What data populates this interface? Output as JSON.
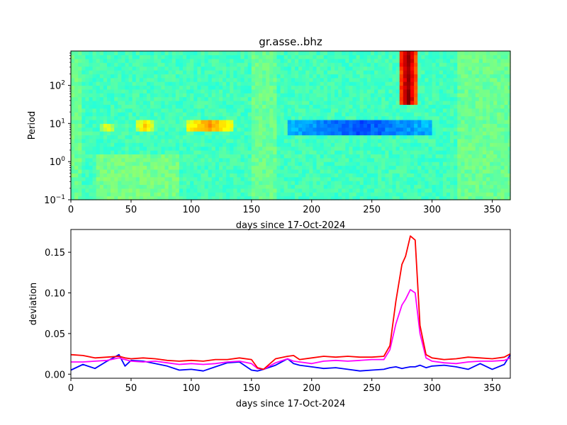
{
  "colors": {
    "series_low": "#0000ff",
    "series_mid": "#ff00ff",
    "series_high": "#ff0000"
  },
  "chart_data": [
    {
      "type": "heatmap",
      "title": "gr.asse..bhz",
      "xlabel": "days since 17-Oct-2024",
      "ylabel": "Period",
      "xlim": [
        0,
        365
      ],
      "ylim_log10": [
        -1,
        2.9
      ],
      "x_ticks": [
        0,
        50,
        100,
        150,
        200,
        250,
        300,
        350
      ],
      "y_ticks": [
        {
          "exp": -1,
          "base": "10",
          "sup": "−1"
        },
        {
          "exp": 0,
          "base": "10",
          "sup": "0"
        },
        {
          "exp": 1,
          "base": "10",
          "sup": "1"
        },
        {
          "exp": 2,
          "base": "10",
          "sup": "2"
        }
      ],
      "colormap": "jet",
      "features": [
        {
          "desc": "strong burst",
          "x_range": [
            272,
            288
          ],
          "period_range": [
            30,
            800
          ],
          "level": 1.0
        },
        {
          "desc": "elevated band",
          "x_range": [
            96,
            135
          ],
          "period_range": [
            7,
            14
          ],
          "level": 0.72
        },
        {
          "desc": "elevated band",
          "x_range": [
            55,
            68
          ],
          "period_range": [
            7,
            14
          ],
          "level": 0.66
        },
        {
          "desc": "elevated band",
          "x_range": [
            25,
            35
          ],
          "period_range": [
            6,
            10
          ],
          "level": 0.6
        },
        {
          "desc": "depressed band",
          "x_range": [
            180,
            300
          ],
          "period_range": [
            5,
            12
          ],
          "level": 0.2
        }
      ]
    },
    {
      "type": "line",
      "title": "",
      "xlabel": "days since 17-Oct-2024",
      "ylabel": "deviation",
      "xlim": [
        0,
        365
      ],
      "ylim": [
        -0.005,
        0.178
      ],
      "x_ticks": [
        0,
        50,
        100,
        150,
        200,
        250,
        300,
        350
      ],
      "y_ticks": [
        {
          "value": 0.0,
          "label": "0.00"
        },
        {
          "value": 0.05,
          "label": "0.05"
        },
        {
          "value": 0.1,
          "label": "0.10"
        },
        {
          "value": 0.15,
          "label": "0.15"
        }
      ],
      "x": [
        0,
        10,
        20,
        30,
        40,
        45,
        50,
        60,
        70,
        80,
        90,
        100,
        110,
        120,
        130,
        140,
        150,
        155,
        160,
        170,
        180,
        185,
        190,
        200,
        210,
        220,
        230,
        240,
        250,
        260,
        265,
        270,
        275,
        278,
        282,
        286,
        290,
        295,
        300,
        310,
        320,
        330,
        340,
        350,
        360,
        365
      ],
      "series": [
        {
          "name": "blue",
          "color": "#0000ff",
          "values": [
            0.005,
            0.012,
            0.007,
            0.016,
            0.024,
            0.01,
            0.017,
            0.016,
            0.013,
            0.01,
            0.005,
            0.006,
            0.004,
            0.009,
            0.014,
            0.015,
            0.005,
            0.004,
            0.006,
            0.011,
            0.019,
            0.013,
            0.011,
            0.009,
            0.007,
            0.008,
            0.006,
            0.004,
            0.005,
            0.006,
            0.008,
            0.009,
            0.007,
            0.008,
            0.009,
            0.009,
            0.011,
            0.008,
            0.01,
            0.011,
            0.009,
            0.006,
            0.013,
            0.006,
            0.012,
            0.024
          ]
        },
        {
          "name": "magenta",
          "color": "#ff00ff",
          "values": [
            0.015,
            0.015,
            0.016,
            0.017,
            0.02,
            0.018,
            0.016,
            0.015,
            0.016,
            0.014,
            0.012,
            0.013,
            0.012,
            0.013,
            0.015,
            0.016,
            0.013,
            0.007,
            0.006,
            0.014,
            0.019,
            0.016,
            0.015,
            0.013,
            0.016,
            0.017,
            0.016,
            0.017,
            0.018,
            0.018,
            0.03,
            0.062,
            0.085,
            0.092,
            0.104,
            0.1,
            0.05,
            0.02,
            0.016,
            0.014,
            0.013,
            0.015,
            0.016,
            0.016,
            0.017,
            0.02
          ]
        },
        {
          "name": "red",
          "color": "#ff0000",
          "values": [
            0.024,
            0.023,
            0.02,
            0.021,
            0.022,
            0.02,
            0.019,
            0.02,
            0.019,
            0.017,
            0.016,
            0.017,
            0.016,
            0.018,
            0.018,
            0.02,
            0.018,
            0.008,
            0.006,
            0.019,
            0.022,
            0.023,
            0.018,
            0.02,
            0.022,
            0.021,
            0.022,
            0.021,
            0.021,
            0.022,
            0.035,
            0.09,
            0.135,
            0.145,
            0.17,
            0.165,
            0.06,
            0.024,
            0.02,
            0.018,
            0.019,
            0.021,
            0.02,
            0.019,
            0.021,
            0.025
          ]
        }
      ]
    }
  ]
}
